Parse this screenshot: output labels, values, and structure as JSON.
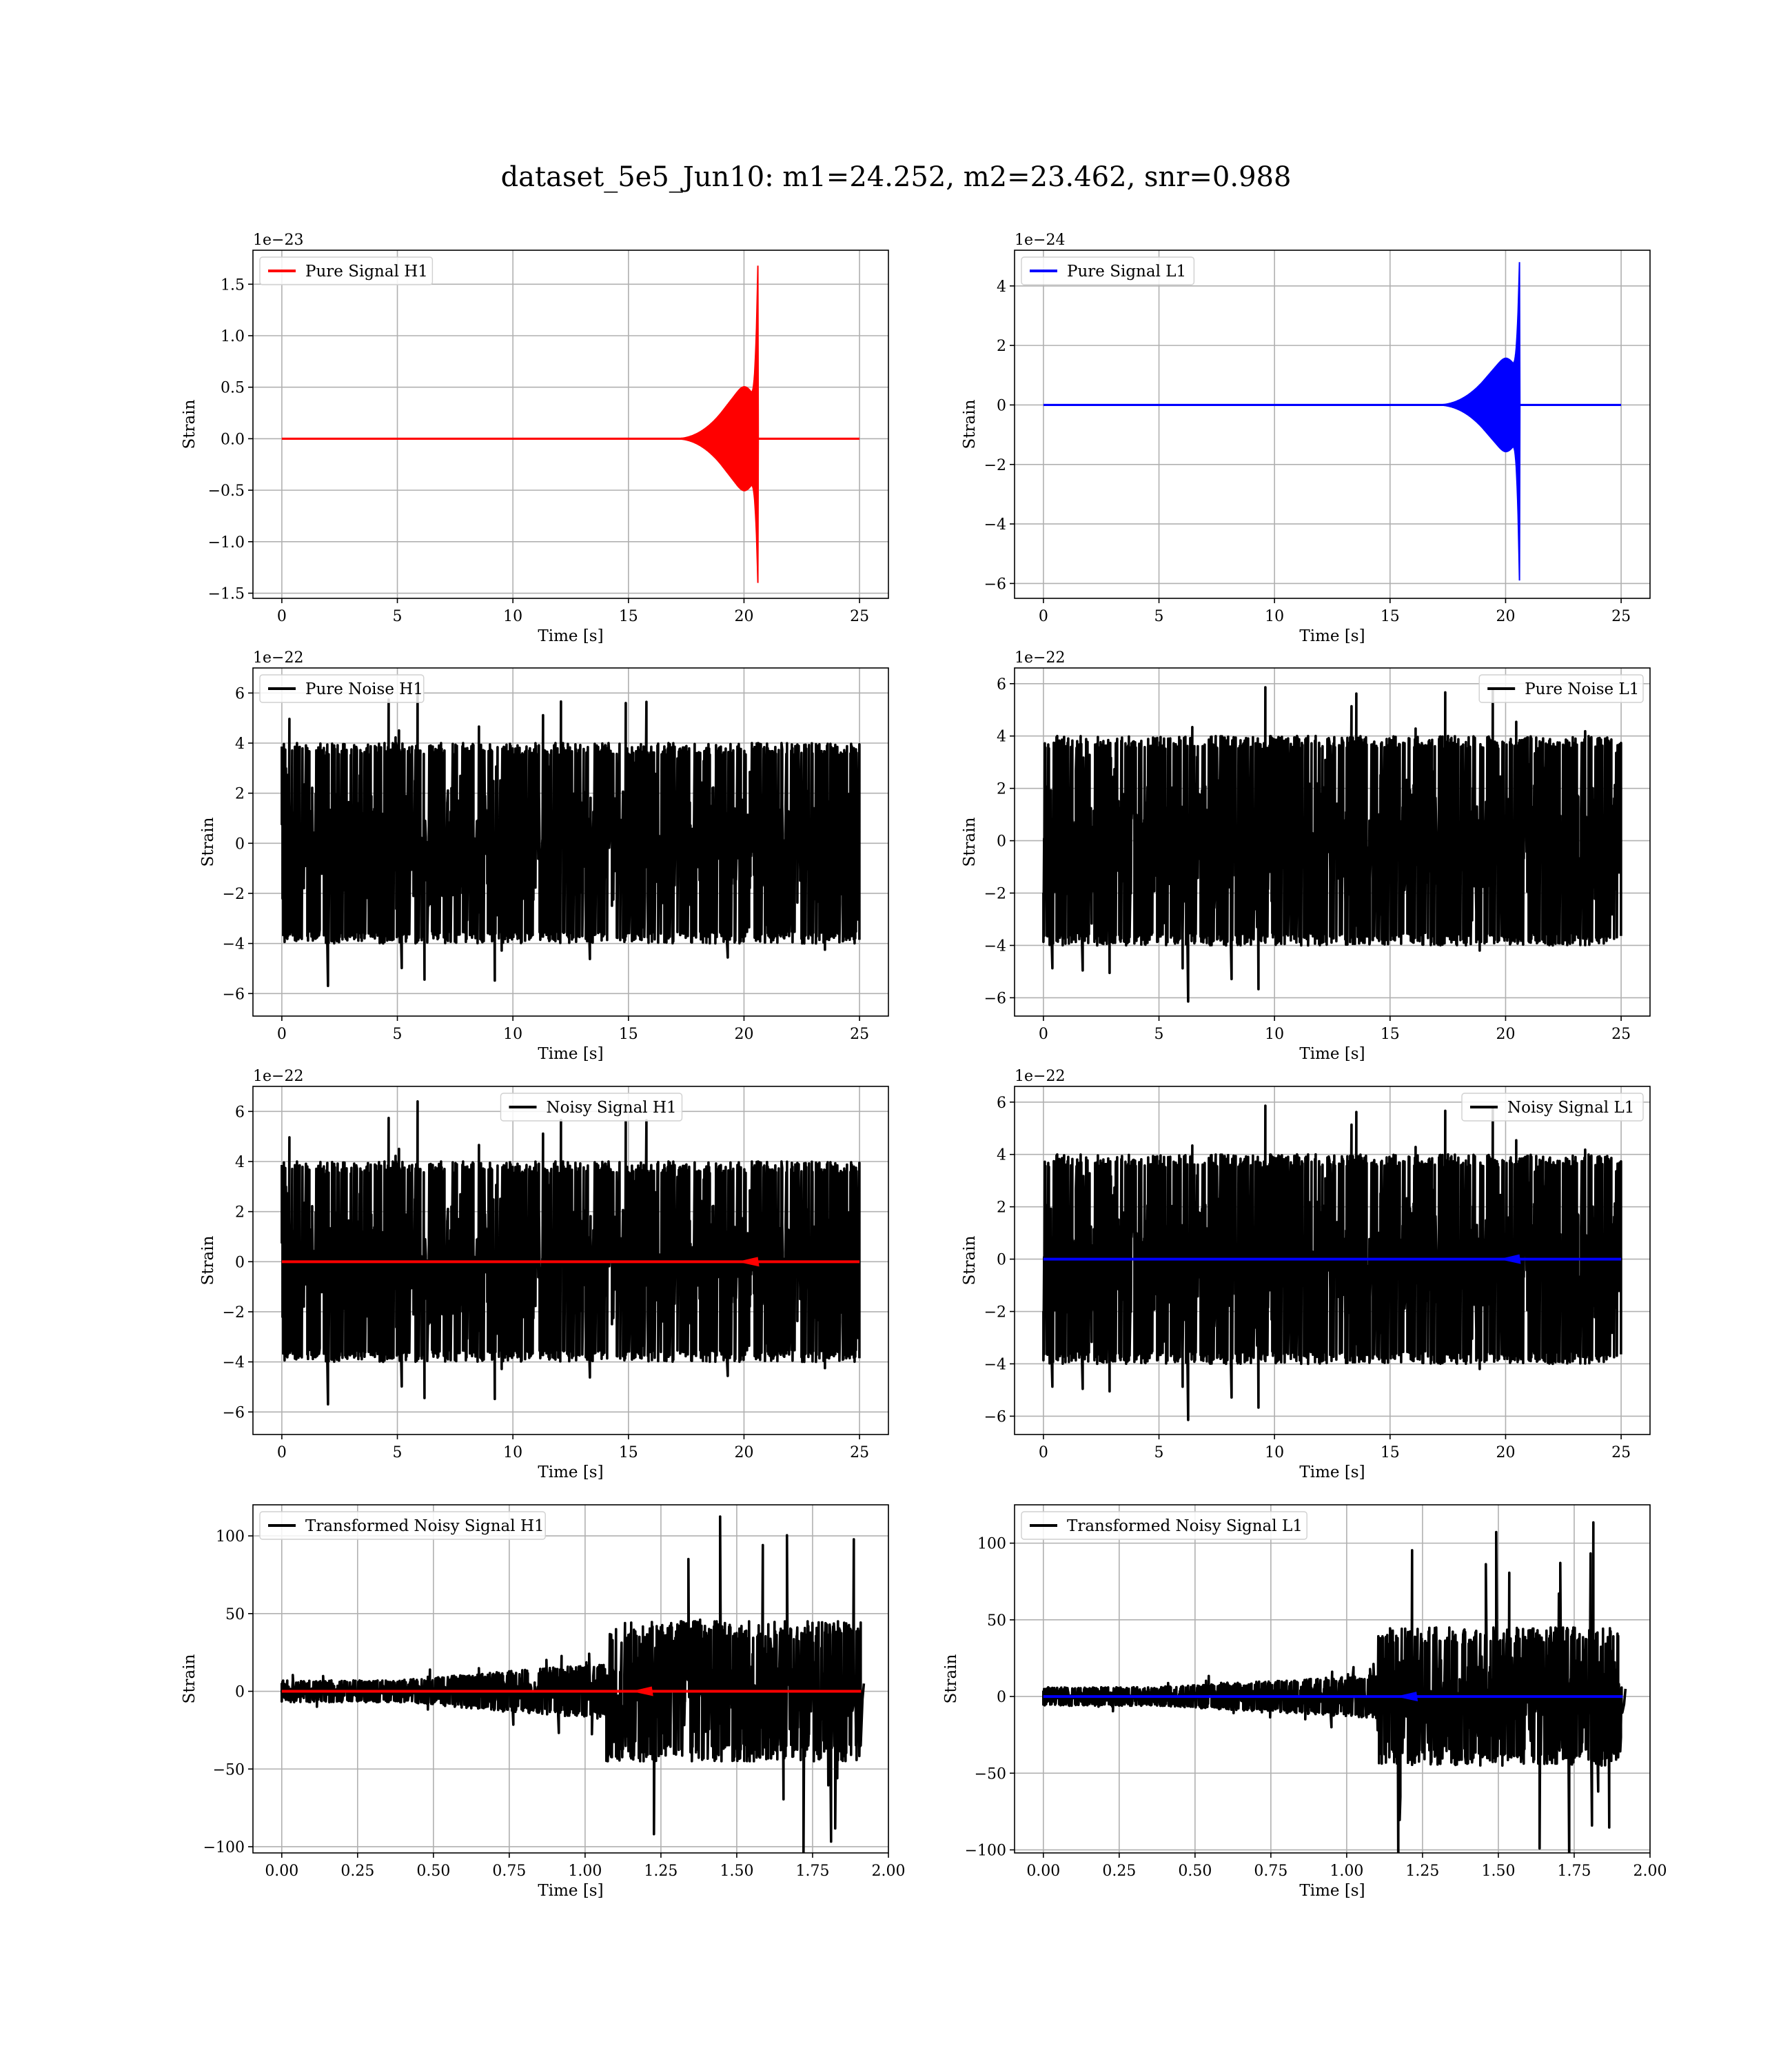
{
  "figure": {
    "title": "dataset_5e5_Jun10: m1=24.252, m2=23.462, snr=0.988"
  },
  "colors": {
    "h1_signal": "#ff0000",
    "l1_signal": "#0000ff",
    "noise": "#000000",
    "grid": "#b0b0b0"
  },
  "chart_data": [
    {
      "id": "pure-signal-h1",
      "type": "line",
      "xlabel": "Time [s]",
      "ylabel": "Strain",
      "offset_label": "1e−23",
      "legend": "top-left",
      "grid": true,
      "xlim": [
        -1.25,
        26.25
      ],
      "ylim": [
        -1.55,
        1.83
      ],
      "xticks": [
        0,
        5,
        10,
        15,
        20,
        25
      ],
      "yticks": [
        -1.5,
        -1.0,
        -0.5,
        0.0,
        0.5,
        1.0,
        1.5
      ],
      "xtick_labels": [
        "0",
        "5",
        "10",
        "15",
        "20",
        "25"
      ],
      "ytick_labels": [
        "−1.5",
        "−1.0",
        "−0.5",
        "0.0",
        "0.5",
        "1.0",
        "1.5"
      ],
      "series": [
        {
          "name": "Pure Signal H1",
          "color": "#ff0000",
          "kind": "chirp",
          "t_end": 25,
          "t_merge": 20.6,
          "y_plateau_pos": 0.45,
          "y_plateau_neg": -0.45,
          "y_peak_pos": 1.68,
          "y_peak_neg": -1.4
        }
      ]
    },
    {
      "id": "pure-signal-l1",
      "type": "line",
      "xlabel": "Time [s]",
      "ylabel": "Strain",
      "offset_label": "1e−24",
      "legend": "top-left",
      "grid": true,
      "xlim": [
        -1.25,
        26.25
      ],
      "ylim": [
        -6.5,
        5.2
      ],
      "xticks": [
        0,
        5,
        10,
        15,
        20,
        25
      ],
      "yticks": [
        -6,
        -4,
        -2,
        0,
        2,
        4
      ],
      "xtick_labels": [
        "0",
        "5",
        "10",
        "15",
        "20",
        "25"
      ],
      "ytick_labels": [
        "−6",
        "−4",
        "−2",
        "0",
        "2",
        "4"
      ],
      "series": [
        {
          "name": "Pure Signal L1",
          "color": "#0000ff",
          "kind": "chirp",
          "t_end": 25,
          "t_merge": 20.6,
          "y_plateau_pos": 1.4,
          "y_plateau_neg": -1.4,
          "y_peak_pos": 4.8,
          "y_peak_neg": -5.9
        }
      ]
    },
    {
      "id": "pure-noise-h1",
      "type": "line",
      "xlabel": "Time [s]",
      "ylabel": "Strain",
      "offset_label": "1e−22",
      "legend": "top-left",
      "grid": true,
      "xlim": [
        -1.25,
        26.25
      ],
      "ylim": [
        -6.9,
        7.0
      ],
      "xticks": [
        0,
        5,
        10,
        15,
        20,
        25
      ],
      "yticks": [
        -6,
        -4,
        -2,
        0,
        2,
        4,
        6
      ],
      "xtick_labels": [
        "0",
        "5",
        "10",
        "15",
        "20",
        "25"
      ],
      "ytick_labels": [
        "−6",
        "−4",
        "−2",
        "0",
        "2",
        "4",
        "6"
      ],
      "series": [
        {
          "name": "Pure Noise H1",
          "color": "#000000",
          "kind": "noise",
          "t_end": 25,
          "band": 4.0,
          "peak": 6.5,
          "seed": 11
        }
      ]
    },
    {
      "id": "pure-noise-l1",
      "type": "line",
      "xlabel": "Time [s]",
      "ylabel": "Strain",
      "offset_label": "1e−22",
      "legend": "top-right",
      "grid": true,
      "xlim": [
        -1.25,
        26.25
      ],
      "ylim": [
        -6.7,
        6.6
      ],
      "xticks": [
        0,
        5,
        10,
        15,
        20,
        25
      ],
      "yticks": [
        -6,
        -4,
        -2,
        0,
        2,
        4,
        6
      ],
      "xtick_labels": [
        "0",
        "5",
        "10",
        "15",
        "20",
        "25"
      ],
      "ytick_labels": [
        "−6",
        "−4",
        "−2",
        "0",
        "2",
        "4",
        "6"
      ],
      "series": [
        {
          "name": "Pure Noise L1",
          "color": "#000000",
          "kind": "noise",
          "t_end": 25,
          "band": 4.0,
          "peak": 6.2,
          "seed": 23
        }
      ]
    },
    {
      "id": "noisy-signal-h1",
      "type": "line",
      "xlabel": "Time [s]",
      "ylabel": "Strain",
      "offset_label": "1e−22",
      "legend": "top-center",
      "grid": true,
      "xlim": [
        -1.25,
        26.25
      ],
      "ylim": [
        -6.9,
        7.0
      ],
      "xticks": [
        0,
        5,
        10,
        15,
        20,
        25
      ],
      "yticks": [
        -6,
        -4,
        -2,
        0,
        2,
        4,
        6
      ],
      "xtick_labels": [
        "0",
        "5",
        "10",
        "15",
        "20",
        "25"
      ],
      "ytick_labels": [
        "−6",
        "−4",
        "−2",
        "0",
        "2",
        "4",
        "6"
      ],
      "series": [
        {
          "name": "Noisy Signal H1",
          "color": "#000000",
          "kind": "noise",
          "t_end": 25,
          "band": 4.0,
          "peak": 6.5,
          "seed": 11
        },
        {
          "color": "#ff0000",
          "kind": "flat",
          "t_end": 25,
          "y": 0,
          "bump_t": 20.6
        }
      ]
    },
    {
      "id": "noisy-signal-l1",
      "type": "line",
      "xlabel": "Time [s]",
      "ylabel": "Strain",
      "offset_label": "1e−22",
      "legend": "top-right",
      "grid": true,
      "xlim": [
        -1.25,
        26.25
      ],
      "ylim": [
        -6.7,
        6.6
      ],
      "xticks": [
        0,
        5,
        10,
        15,
        20,
        25
      ],
      "yticks": [
        -6,
        -4,
        -2,
        0,
        2,
        4,
        6
      ],
      "xtick_labels": [
        "0",
        "5",
        "10",
        "15",
        "20",
        "25"
      ],
      "ytick_labels": [
        "−6",
        "−4",
        "−2",
        "0",
        "2",
        "4",
        "6"
      ],
      "series": [
        {
          "name": "Noisy Signal L1",
          "color": "#000000",
          "kind": "noise",
          "t_end": 25,
          "band": 4.0,
          "peak": 6.2,
          "seed": 23
        },
        {
          "color": "#0000ff",
          "kind": "flat",
          "t_end": 25,
          "y": 0,
          "bump_t": 20.6
        }
      ]
    },
    {
      "id": "transformed-noisy-signal-h1",
      "type": "line",
      "xlabel": "Time [s]",
      "ylabel": "Strain",
      "offset_label": "",
      "legend": "top-left",
      "grid": true,
      "xlim": [
        -0.095,
        2.0
      ],
      "ylim": [
        -104,
        120
      ],
      "xticks": [
        0.0,
        0.25,
        0.5,
        0.75,
        1.0,
        1.25,
        1.5,
        1.75,
        2.0
      ],
      "yticks": [
        -100,
        -50,
        0,
        50,
        100
      ],
      "xtick_labels": [
        "0.00",
        "0.25",
        "0.50",
        "0.75",
        "1.00",
        "1.25",
        "1.50",
        "1.75",
        "2.00"
      ],
      "ytick_labels": [
        "−100",
        "−50",
        "0",
        "50",
        "100"
      ],
      "series": [
        {
          "name": "Transformed Noisy Signal H1",
          "color": "#000000",
          "kind": "transformed",
          "t_end": 1.91,
          "t_jump": 1.07,
          "amp_early": 7,
          "amp_mid": 18,
          "amp_late": 45,
          "peak": 115,
          "seed": 37
        },
        {
          "color": "#ff0000",
          "kind": "flat",
          "t_end": 1.91,
          "y": 0,
          "bump_t": 1.22
        }
      ]
    },
    {
      "id": "transformed-noisy-signal-l1",
      "type": "line",
      "xlabel": "Time [s]",
      "ylabel": "Strain",
      "offset_label": "",
      "legend": "top-left",
      "grid": true,
      "xlim": [
        -0.095,
        2.0
      ],
      "ylim": [
        -102,
        125
      ],
      "xticks": [
        0.0,
        0.25,
        0.5,
        0.75,
        1.0,
        1.25,
        1.5,
        1.75,
        2.0
      ],
      "yticks": [
        -100,
        -50,
        0,
        50,
        100
      ],
      "xtick_labels": [
        "0.00",
        "0.25",
        "0.50",
        "0.75",
        "1.00",
        "1.25",
        "1.50",
        "1.75",
        "2.00"
      ],
      "ytick_labels": [
        "−100",
        "−50",
        "0",
        "50",
        "100"
      ],
      "series": [
        {
          "name": "Transformed Noisy Signal L1",
          "color": "#000000",
          "kind": "transformed",
          "t_end": 1.91,
          "t_jump": 1.1,
          "amp_early": 6,
          "amp_mid": 14,
          "amp_late": 45,
          "peak": 118,
          "seed": 53
        },
        {
          "color": "#0000ff",
          "kind": "flat",
          "t_end": 1.91,
          "y": 0,
          "bump_t": 1.23
        }
      ]
    }
  ]
}
